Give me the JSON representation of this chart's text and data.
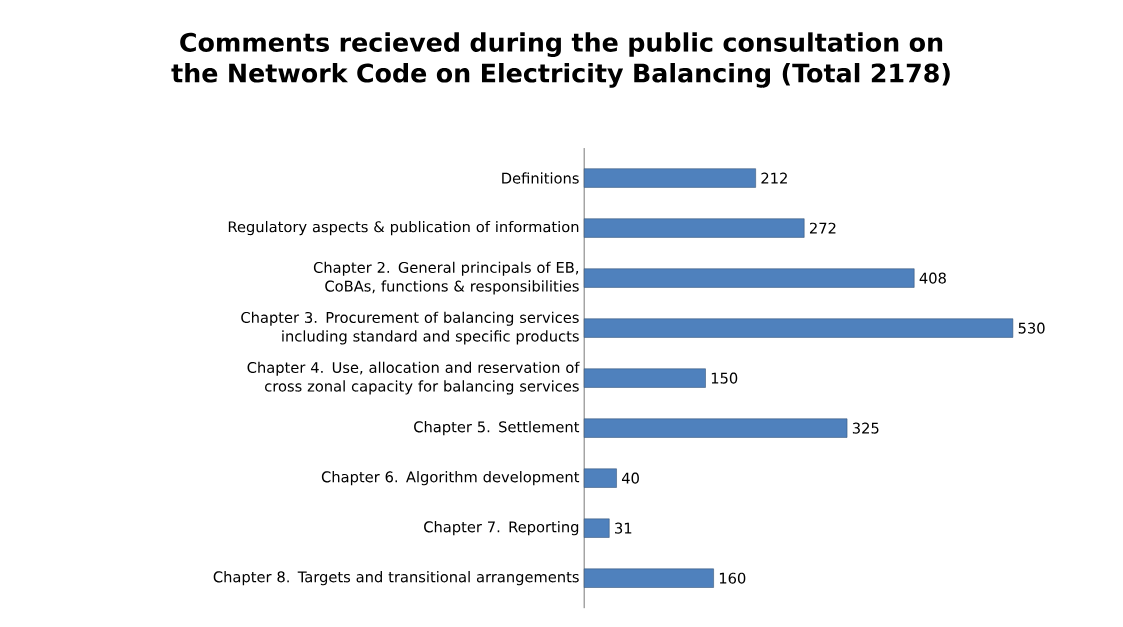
{
  "chart_data": {
    "type": "bar",
    "orientation": "horizontal",
    "title": "Comments recieved during the public consultation on the Network Code on Electricity Balancing (Total 2178)",
    "categories": [
      "Definitions",
      "Regulatory aspects  & publication of information",
      "Chapter 2. General principals of EB, CoBAs, functions & responsibilities",
      "Chapter 3. Procurement of balancing services including standard and specific products",
      "Chapter 4. Use, allocation and reservation of cross zonal capacity for balancing services",
      "Chapter 5. Settlement",
      "Chapter 6. Algorithm development",
      "Chapter 7. Reporting",
      "Chapter 8. Targets and transitional arrangements"
    ],
    "values": [
      212,
      272,
      408,
      530,
      150,
      325,
      40,
      31,
      160
    ],
    "color": "#4f81bd",
    "data_labels": true
  }
}
